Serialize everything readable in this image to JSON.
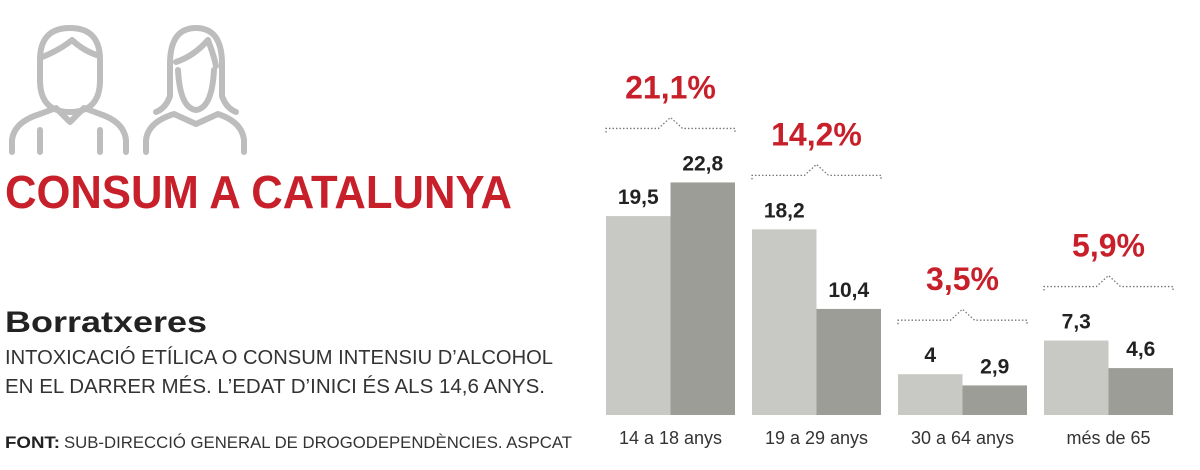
{
  "chart_data": {
    "type": "bar",
    "title": "CONSUM A CATALUNYA",
    "subtitle": "Borratxeres",
    "description": [
      "INTOXICACIÓ ETÍLICA O CONSUM INTENSIU D’ALCOHOL",
      "EN EL DARRER MÉS. L’EDAT D’INICI ÉS ALS 14,6 ANYS."
    ],
    "source_label": "FONT:",
    "source": "SUB-DIRECCIÓ GENERAL DE DROGODEPENDÈNCIES. ASPCAT",
    "categories": [
      "14 a 18 anys",
      "19 a 29 anys",
      "30 a 64 anys",
      "més de 65"
    ],
    "series": [
      {
        "color": "#c8c8c5",
        "values": [
          19.5,
          18.2,
          4,
          7.3
        ],
        "value_labels": [
          "19,5",
          "18,2",
          "4",
          "7,3"
        ]
      },
      {
        "color": "#9d9d98",
        "values": [
          22.8,
          10.4,
          2.9,
          4.6
        ],
        "value_labels": [
          "22,8",
          "10,4",
          "2,9",
          "4,6"
        ]
      }
    ],
    "annotations": {
      "color": "#c8202a",
      "values": [
        21.1,
        14.2,
        3.5,
        5.9
      ],
      "value_labels": [
        "21,1%",
        "14,2%",
        "3,5%",
        "5,9%"
      ]
    }
  }
}
